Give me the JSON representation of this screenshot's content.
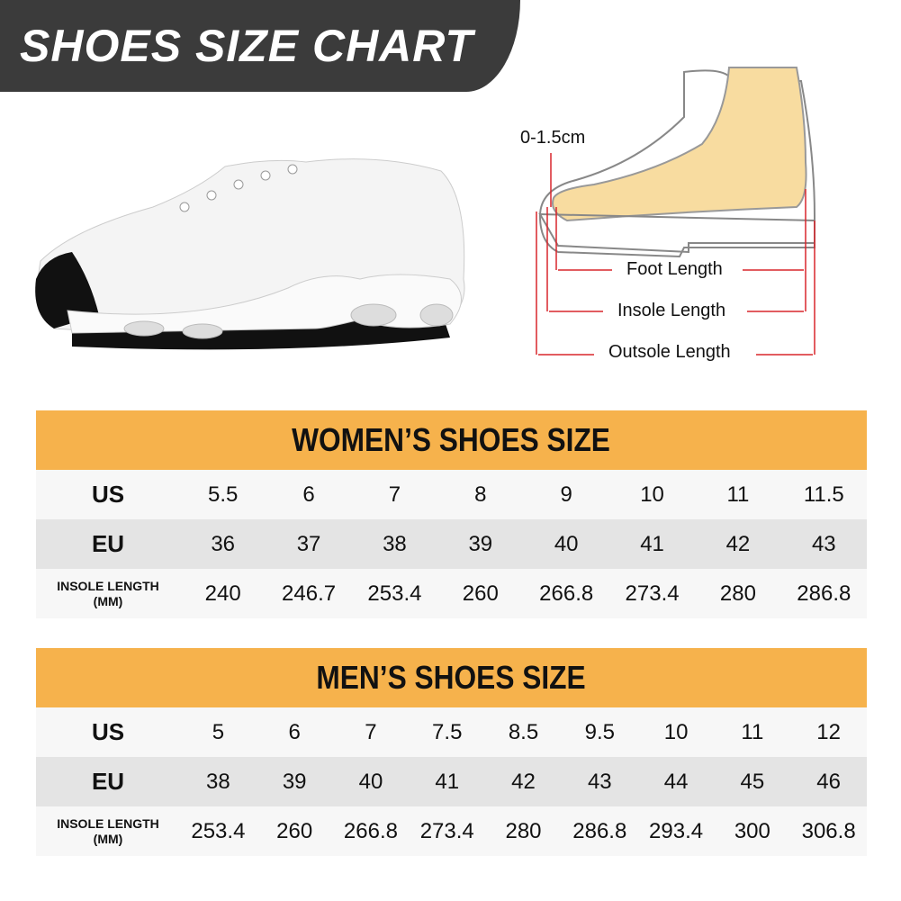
{
  "banner": {
    "title": "SHOES SIZE CHART"
  },
  "diagram": {
    "toe_gap": "0-1.5cm",
    "foot_length": "Foot Length",
    "insole_length": "Insole Length",
    "outsole_length": "Outsole Length"
  },
  "colors": {
    "banner": "#3b3b3b",
    "table_header": "#f6b24c",
    "row_light": "#f7f7f7",
    "row_grey": "#e4e4e4",
    "arrow": "#d9262c",
    "foot": "#f8dca0"
  },
  "women": {
    "title": "WOMEN’S SHOES SIZE",
    "labels": {
      "us": "US",
      "eu": "EU",
      "insole_1": "INSOLE LENGTH",
      "insole_2": "(MM)"
    },
    "us": [
      "5.5",
      "6",
      "7",
      "8",
      "9",
      "10",
      "11",
      "11.5"
    ],
    "eu": [
      "36",
      "37",
      "38",
      "39",
      "40",
      "41",
      "42",
      "43"
    ],
    "insole": [
      "240",
      "246.7",
      "253.4",
      "260",
      "266.8",
      "273.4",
      "280",
      "286.8"
    ]
  },
  "men": {
    "title": "MEN’S SHOES SIZE",
    "labels": {
      "us": "US",
      "eu": "EU",
      "insole_1": "INSOLE LENGTH",
      "insole_2": "(MM)"
    },
    "us": [
      "5",
      "6",
      "7",
      "7.5",
      "8.5",
      "9.5",
      "10",
      "11",
      "12"
    ],
    "eu": [
      "38",
      "39",
      "40",
      "41",
      "42",
      "43",
      "44",
      "45",
      "46"
    ],
    "insole": [
      "253.4",
      "260",
      "266.8",
      "273.4",
      "280",
      "286.8",
      "293.4",
      "300",
      "306.8"
    ]
  }
}
